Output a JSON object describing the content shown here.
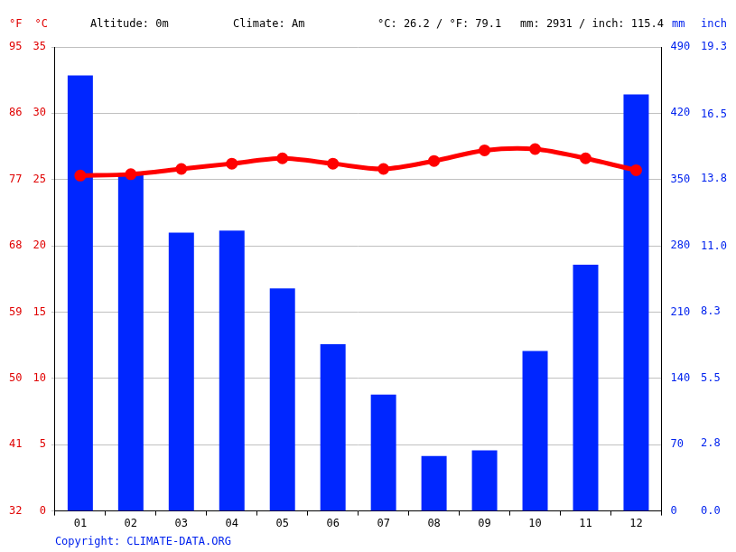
{
  "chart_data": {
    "type": "bar",
    "annotations": [
      "Altitude: 0m",
      "Climate: Am",
      "°C: 26.2 / °F: 79.1",
      "mm: 2931 / inch: 115.4"
    ],
    "source": "Copyright: CLIMATE-DATA.ORG",
    "categories": [
      "01",
      "02",
      "03",
      "04",
      "05",
      "06",
      "07",
      "08",
      "09",
      "10",
      "11",
      "12"
    ],
    "series": [
      {
        "type": "bar",
        "color": "#0026ff",
        "axis": "y2",
        "values": [
          460,
          356,
          294,
          296,
          235,
          176,
          123,
          58,
          64,
          169,
          260,
          440
        ]
      },
      {
        "type": "line",
        "color": "#ff0000",
        "marker": "circle",
        "axis": "y",
        "values": [
          25.3,
          25.4,
          25.8,
          26.2,
          26.6,
          26.2,
          25.8,
          26.4,
          27.2,
          27.3,
          26.6,
          25.7
        ]
      }
    ],
    "ylabel": "°C",
    "ylim": [
      0,
      35
    ],
    "yticks": [
      0,
      5,
      10,
      15,
      20,
      25,
      30,
      35
    ],
    "y2label": "mm",
    "y2lim": [
      0,
      490
    ],
    "y2ticks": [
      0,
      70,
      140,
      210,
      280,
      350,
      420,
      490
    ],
    "y3label": "°F",
    "y3lim": [
      32,
      95
    ],
    "y3ticks": [
      32,
      41,
      50,
      59,
      68,
      77,
      86,
      95
    ],
    "y4label": "inch",
    "y4lim": [
      0,
      19.3
    ],
    "y4ticks": [
      {
        "value": 0,
        "label": "0.0"
      },
      2.8,
      5.5,
      8.3,
      {
        "value": 11,
        "label": "11.0"
      },
      13.8,
      16.5,
      19.3
    ],
    "grid": true
  }
}
